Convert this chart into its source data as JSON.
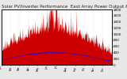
{
  "title": "Solar PV/Inverter Performance  East Array Power Output & Solar Radiation",
  "bg_color": "#e8e8e8",
  "plot_bg": "#ffffff",
  "grid_color": "#aaaaaa",
  "red_color": "#cc0000",
  "blue_color": "#0000ff",
  "num_points": 365,
  "title_fontsize": 4.0,
  "tick_fontsize": 3.0,
  "y_max": 1800,
  "y_ticks": [
    0,
    200,
    400,
    600,
    800,
    1000,
    1200,
    1400,
    1600,
    1800
  ]
}
